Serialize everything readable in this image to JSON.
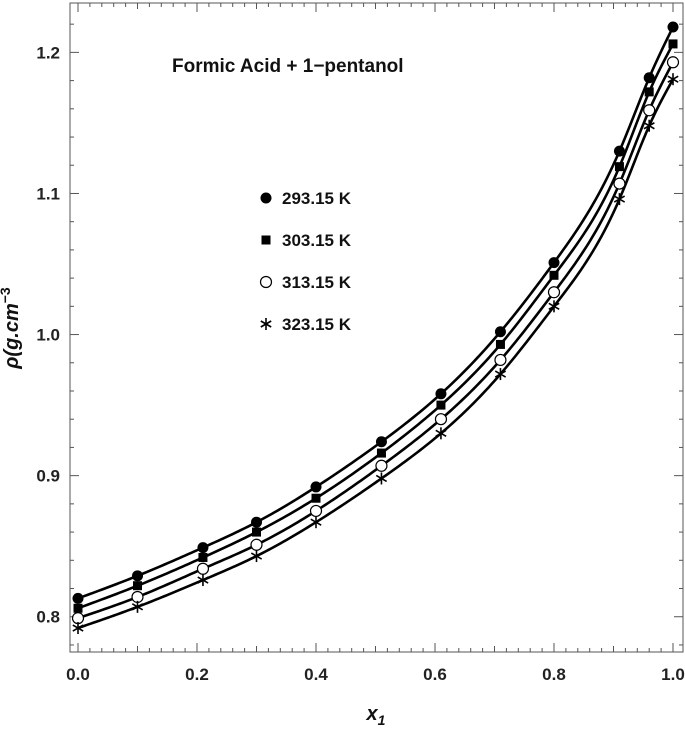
{
  "chart_data": {
    "type": "scatter",
    "title": "Formic Acid + 1−pentanol",
    "xlabel": "x",
    "xlabel_subscript": "1",
    "ylabel": "ρ(g.cm",
    "ylabel_superscript": "−3",
    "xlim": [
      0.0,
      1.0
    ],
    "ylim": [
      0.775,
      1.235
    ],
    "xticks": [
      0.0,
      0.2,
      0.4,
      0.6,
      0.8,
      1.0
    ],
    "xtick_labels": [
      "0.0",
      "0.2",
      "0.4",
      "0.6",
      "0.8",
      "1.0"
    ],
    "yticks": [
      0.8,
      0.9,
      1.0,
      1.1,
      1.2
    ],
    "ytick_labels": [
      "0.8",
      "0.9",
      "1.0",
      "1.1",
      "1.2"
    ],
    "x": [
      0.0,
      0.1,
      0.21,
      0.3,
      0.4,
      0.51,
      0.61,
      0.71,
      0.8,
      0.91,
      0.96,
      1.0
    ],
    "series": [
      {
        "name": "293.15 K",
        "marker": "filled-circle",
        "y": [
          0.813,
          0.829,
          0.849,
          0.867,
          0.892,
          0.924,
          0.958,
          1.002,
          1.051,
          1.13,
          1.182,
          1.218
        ]
      },
      {
        "name": "303.15 K",
        "marker": "filled-square",
        "y": [
          0.806,
          0.822,
          0.842,
          0.86,
          0.884,
          0.916,
          0.95,
          0.993,
          1.042,
          1.119,
          1.172,
          1.206
        ]
      },
      {
        "name": "313.15 K",
        "marker": "open-circle",
        "y": [
          0.799,
          0.814,
          0.834,
          0.851,
          0.875,
          0.907,
          0.94,
          0.982,
          1.03,
          1.107,
          1.159,
          1.193
        ]
      },
      {
        "name": "323.15 K",
        "marker": "asterisk",
        "y": [
          0.792,
          0.807,
          0.826,
          0.843,
          0.867,
          0.898,
          0.93,
          0.972,
          1.02,
          1.096,
          1.148,
          1.181
        ]
      }
    ],
    "legend_position": "upper-left inside plot",
    "grid": false,
    "fit_curves": true
  }
}
